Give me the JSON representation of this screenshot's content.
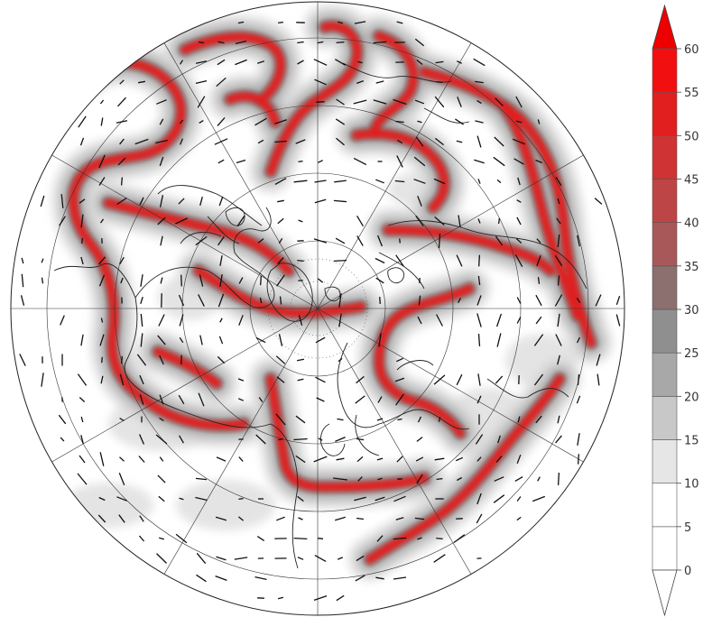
{
  "colorbar": {
    "levels": [
      "0",
      "5",
      "10",
      "15",
      "20",
      "25",
      "30",
      "35",
      "40",
      "45",
      "50",
      "55",
      "60"
    ],
    "colors": [
      "#ffffff",
      "#ffffff",
      "#ffffff",
      "#e6e6e6",
      "#c8c8c8",
      "#a8a8a8",
      "#8f8f8f",
      "#8c6f6f",
      "#a85858",
      "#bd4545",
      "#cf3333",
      "#e21f1f",
      "#f20f0f"
    ],
    "extend_top_color": "#ee0000",
    "extend_bottom_color": "#ffffff"
  },
  "map": {
    "projection": "north-polar-stereographic",
    "background": "#ffffff",
    "shading_colors": {
      "light": "#d9d9d9",
      "medium": "#a8a8a8",
      "dark": "#8a6a6a",
      "jet": "#e21f1f"
    }
  }
}
